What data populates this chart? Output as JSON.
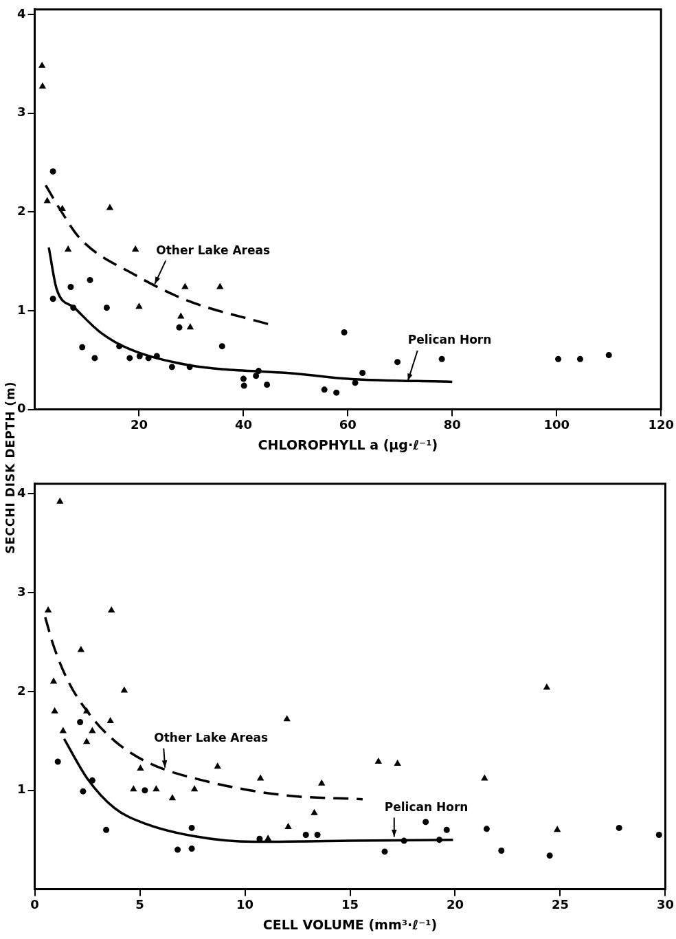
{
  "chart_data": [
    {
      "type": "scatter",
      "xlabel": "CHLOROPHYLL a (μg·ℓ⁻¹)",
      "ylabel": "SECCHI DISK DEPTH (m)",
      "xlim": [
        0,
        120
      ],
      "xticks": [
        20,
        40,
        60,
        80,
        100,
        120
      ],
      "ylim": [
        0,
        4.05
      ],
      "yticks": [
        0,
        1,
        2,
        3,
        4
      ],
      "grid": false,
      "legend": false,
      "series": [
        {
          "type": "scatter",
          "marker": "triangle",
          "color": "#000000",
          "x": [
            1.4,
            1.5,
            2.4,
            5.3,
            6.4,
            14.4,
            19.3,
            20,
            28.8,
            28,
            29.8,
            35.5
          ],
          "values": [
            3.48,
            3.27,
            2.11,
            2.03,
            1.62,
            2.04,
            1.62,
            1.04,
            1.24,
            0.94,
            0.83,
            1.24
          ]
        },
        {
          "type": "scatter",
          "marker": "circle",
          "color": "#000000",
          "x": [
            3.5,
            3.5,
            6.9,
            7.4,
            9.1,
            10.6,
            11.5,
            13.8,
            16.2,
            18.2,
            20.1,
            21.8,
            23.4,
            26.3,
            27.7,
            29.7,
            35.9,
            40,
            40.1,
            42.4,
            42.9,
            44.5,
            55.5,
            57.8,
            59.3,
            61.4,
            62.8,
            69.5,
            78,
            100.3,
            104.5,
            110
          ],
          "values": [
            2.41,
            1.12,
            1.24,
            1.03,
            0.63,
            1.31,
            0.52,
            1.03,
            0.64,
            0.52,
            0.54,
            0.52,
            0.54,
            0.43,
            0.83,
            0.43,
            0.64,
            0.31,
            0.24,
            0.34,
            0.39,
            0.25,
            0.2,
            0.17,
            0.78,
            0.27,
            0.37,
            0.48,
            0.51,
            0.51,
            0.51,
            0.55
          ]
        },
        {
          "type": "line",
          "marker": "none",
          "line_style": "dashed",
          "color": "#000000",
          "x": [
            2.1,
            4.8,
            8.7,
            19.3,
            29.4,
            45
          ],
          "values": [
            2.27,
            2.03,
            1.73,
            1.36,
            1.1,
            0.86
          ]
        },
        {
          "type": "line",
          "marker": "none",
          "line_style": "solid",
          "color": "#000000",
          "x": [
            2.7,
            4.2,
            7.6,
            12.6,
            18.2,
            29.4,
            50.6,
            60,
            80
          ],
          "values": [
            1.64,
            1.22,
            1.03,
            0.78,
            0.61,
            0.45,
            0.36,
            0.31,
            0.28
          ]
        }
      ],
      "annotations": [
        {
          "text": "Other Lake Areas",
          "x": 23,
          "y": 1.27
        },
        {
          "text": "Pelican Horn",
          "x": 71.5,
          "y": 0.29
        }
      ]
    },
    {
      "type": "scatter",
      "xlabel": "CELL VOLUME (mm³·ℓ⁻¹)",
      "xlim": [
        0,
        30
      ],
      "xticks": [
        0,
        5,
        10,
        15,
        20,
        25,
        30
      ],
      "ylim": [
        0,
        4.1
      ],
      "yticks": [
        1,
        2,
        3,
        4
      ],
      "grid": false,
      "legend": false,
      "series": [
        {
          "type": "scatter",
          "marker": "triangle",
          "color": "#000000",
          "x": [
            1.2,
            0.64,
            3.65,
            2.2,
            0.9,
            4.26,
            0.95,
            1.35,
            2.47,
            2.47,
            2.74,
            3.6,
            5.03,
            4.7,
            5.78,
            6.55,
            7.6,
            8.7,
            10.74,
            12.0,
            12.06,
            11.1,
            13.65,
            13.3,
            16.35,
            17.26,
            21.4,
            24.36,
            24.86
          ],
          "values": [
            3.92,
            2.82,
            2.82,
            2.42,
            2.1,
            2.01,
            1.8,
            1.6,
            1.8,
            1.49,
            1.6,
            1.7,
            1.22,
            1.01,
            1.01,
            0.92,
            1.01,
            1.24,
            1.12,
            1.72,
            0.63,
            0.51,
            1.07,
            0.77,
            1.29,
            1.27,
            1.12,
            2.04,
            0.6
          ]
        },
        {
          "type": "scatter",
          "marker": "circle",
          "color": "#000000",
          "x": [
            2.16,
            1.1,
            2.3,
            2.74,
            3.4,
            5.24,
            7.47,
            6.8,
            7.47,
            10.7,
            12.9,
            13.45,
            16.65,
            17.57,
            18.6,
            19.25,
            19.6,
            21.5,
            22.2,
            24.5,
            27.8,
            29.7
          ],
          "values": [
            1.69,
            1.29,
            0.99,
            1.1,
            0.6,
            1.0,
            0.62,
            0.4,
            0.41,
            0.51,
            0.55,
            0.55,
            0.38,
            0.49,
            0.68,
            0.5,
            0.6,
            0.61,
            0.39,
            0.34,
            0.62,
            0.55
          ]
        },
        {
          "type": "line",
          "marker": "none",
          "line_style": "dashed",
          "color": "#000000",
          "x": [
            0.5,
            0.9,
            1.6,
            2.6,
            3.8,
            5.4,
            8.2,
            11.9,
            15.6
          ],
          "values": [
            2.75,
            2.46,
            2.1,
            1.77,
            1.5,
            1.28,
            1.09,
            0.95,
            0.91
          ]
        },
        {
          "type": "line",
          "marker": "none",
          "line_style": "solid",
          "color": "#000000",
          "x": [
            1.4,
            2.5,
            3.8,
            5.3,
            7.5,
            10.4,
            15,
            19.9
          ],
          "values": [
            1.52,
            1.12,
            0.82,
            0.66,
            0.54,
            0.48,
            0.49,
            0.5
          ]
        }
      ],
      "annotations": [
        {
          "text": "Other Lake Areas",
          "x": 6.2,
          "y": 1.23
        },
        {
          "text": "Pelican Horn",
          "x": 17.1,
          "y": 0.53
        }
      ]
    }
  ]
}
